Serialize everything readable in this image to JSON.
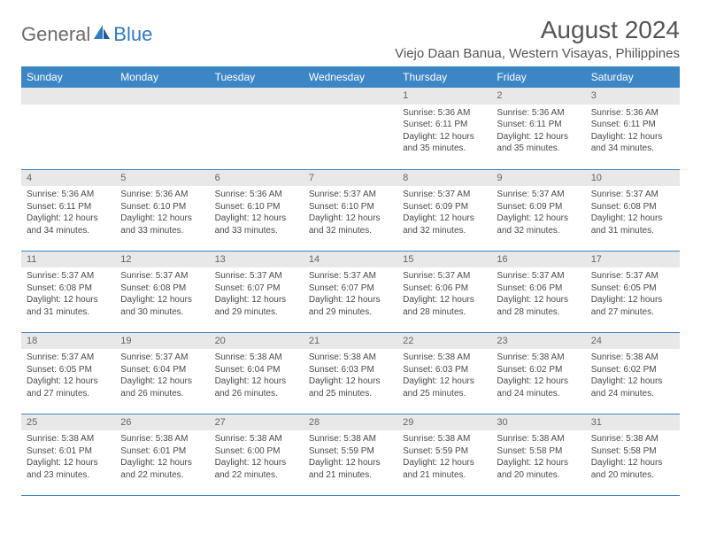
{
  "brand": {
    "part1": "General",
    "part2": "Blue"
  },
  "title": "August 2024",
  "location": "Viejo Daan Banua, Western Visayas, Philippines",
  "colors": {
    "header_bg": "#3d86c6",
    "header_text": "#ffffff",
    "daynum_bg": "#e8e8e8",
    "body_text": "#4a4a4a",
    "rule": "#3d86c6",
    "title_text": "#555555",
    "logo_gray": "#6b6b6b",
    "logo_blue": "#2f7bbf"
  },
  "typography": {
    "title_pt": 28,
    "location_pt": 15,
    "weekday_pt": 12,
    "daynum_pt": 11,
    "body_pt": 10
  },
  "weekdays": [
    "Sunday",
    "Monday",
    "Tuesday",
    "Wednesday",
    "Thursday",
    "Friday",
    "Saturday"
  ],
  "weeks": [
    [
      null,
      null,
      null,
      null,
      {
        "n": "1",
        "sr": "5:36 AM",
        "ss": "6:11 PM",
        "dl": "12 hours and 35 minutes."
      },
      {
        "n": "2",
        "sr": "5:36 AM",
        "ss": "6:11 PM",
        "dl": "12 hours and 35 minutes."
      },
      {
        "n": "3",
        "sr": "5:36 AM",
        "ss": "6:11 PM",
        "dl": "12 hours and 34 minutes."
      }
    ],
    [
      {
        "n": "4",
        "sr": "5:36 AM",
        "ss": "6:11 PM",
        "dl": "12 hours and 34 minutes."
      },
      {
        "n": "5",
        "sr": "5:36 AM",
        "ss": "6:10 PM",
        "dl": "12 hours and 33 minutes."
      },
      {
        "n": "6",
        "sr": "5:36 AM",
        "ss": "6:10 PM",
        "dl": "12 hours and 33 minutes."
      },
      {
        "n": "7",
        "sr": "5:37 AM",
        "ss": "6:10 PM",
        "dl": "12 hours and 32 minutes."
      },
      {
        "n": "8",
        "sr": "5:37 AM",
        "ss": "6:09 PM",
        "dl": "12 hours and 32 minutes."
      },
      {
        "n": "9",
        "sr": "5:37 AM",
        "ss": "6:09 PM",
        "dl": "12 hours and 32 minutes."
      },
      {
        "n": "10",
        "sr": "5:37 AM",
        "ss": "6:08 PM",
        "dl": "12 hours and 31 minutes."
      }
    ],
    [
      {
        "n": "11",
        "sr": "5:37 AM",
        "ss": "6:08 PM",
        "dl": "12 hours and 31 minutes."
      },
      {
        "n": "12",
        "sr": "5:37 AM",
        "ss": "6:08 PM",
        "dl": "12 hours and 30 minutes."
      },
      {
        "n": "13",
        "sr": "5:37 AM",
        "ss": "6:07 PM",
        "dl": "12 hours and 29 minutes."
      },
      {
        "n": "14",
        "sr": "5:37 AM",
        "ss": "6:07 PM",
        "dl": "12 hours and 29 minutes."
      },
      {
        "n": "15",
        "sr": "5:37 AM",
        "ss": "6:06 PM",
        "dl": "12 hours and 28 minutes."
      },
      {
        "n": "16",
        "sr": "5:37 AM",
        "ss": "6:06 PM",
        "dl": "12 hours and 28 minutes."
      },
      {
        "n": "17",
        "sr": "5:37 AM",
        "ss": "6:05 PM",
        "dl": "12 hours and 27 minutes."
      }
    ],
    [
      {
        "n": "18",
        "sr": "5:37 AM",
        "ss": "6:05 PM",
        "dl": "12 hours and 27 minutes."
      },
      {
        "n": "19",
        "sr": "5:37 AM",
        "ss": "6:04 PM",
        "dl": "12 hours and 26 minutes."
      },
      {
        "n": "20",
        "sr": "5:38 AM",
        "ss": "6:04 PM",
        "dl": "12 hours and 26 minutes."
      },
      {
        "n": "21",
        "sr": "5:38 AM",
        "ss": "6:03 PM",
        "dl": "12 hours and 25 minutes."
      },
      {
        "n": "22",
        "sr": "5:38 AM",
        "ss": "6:03 PM",
        "dl": "12 hours and 25 minutes."
      },
      {
        "n": "23",
        "sr": "5:38 AM",
        "ss": "6:02 PM",
        "dl": "12 hours and 24 minutes."
      },
      {
        "n": "24",
        "sr": "5:38 AM",
        "ss": "6:02 PM",
        "dl": "12 hours and 24 minutes."
      }
    ],
    [
      {
        "n": "25",
        "sr": "5:38 AM",
        "ss": "6:01 PM",
        "dl": "12 hours and 23 minutes."
      },
      {
        "n": "26",
        "sr": "5:38 AM",
        "ss": "6:01 PM",
        "dl": "12 hours and 22 minutes."
      },
      {
        "n": "27",
        "sr": "5:38 AM",
        "ss": "6:00 PM",
        "dl": "12 hours and 22 minutes."
      },
      {
        "n": "28",
        "sr": "5:38 AM",
        "ss": "5:59 PM",
        "dl": "12 hours and 21 minutes."
      },
      {
        "n": "29",
        "sr": "5:38 AM",
        "ss": "5:59 PM",
        "dl": "12 hours and 21 minutes."
      },
      {
        "n": "30",
        "sr": "5:38 AM",
        "ss": "5:58 PM",
        "dl": "12 hours and 20 minutes."
      },
      {
        "n": "31",
        "sr": "5:38 AM",
        "ss": "5:58 PM",
        "dl": "12 hours and 20 minutes."
      }
    ]
  ],
  "labels": {
    "sunrise": "Sunrise:",
    "sunset": "Sunset:",
    "daylight": "Daylight:"
  }
}
